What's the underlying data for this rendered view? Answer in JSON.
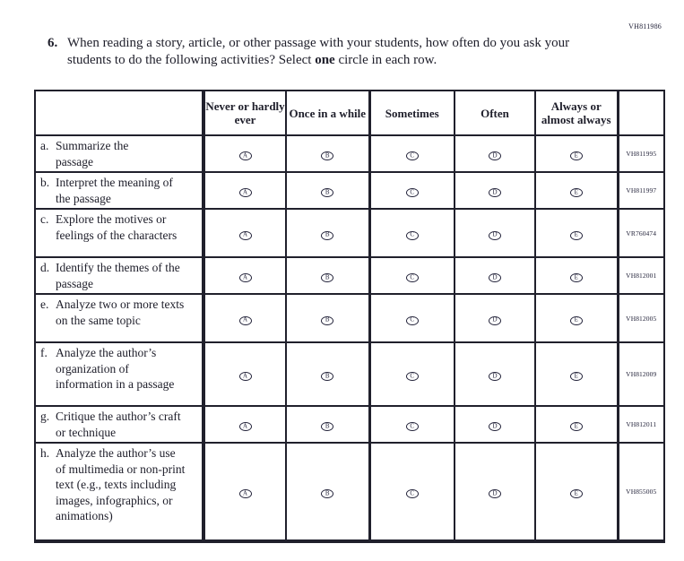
{
  "page": {
    "corner_id": "VH811986"
  },
  "question": {
    "number": "6.",
    "text_1": "When reading a story, article, or other passage with your students, how often do you ask your students to do the following activities? Select ",
    "bold_word": "one",
    "text_2": " circle in each row."
  },
  "table": {
    "columns": [
      "Never or hardly ever",
      "Once in a while",
      "Sometimes",
      "Often",
      "Always or almost always"
    ],
    "options": [
      "A",
      "B",
      "C",
      "D",
      "E"
    ],
    "rows": [
      {
        "letter": "a.",
        "label": "Summarize the passage",
        "id": "VH811995"
      },
      {
        "letter": "b.",
        "label": "Interpret the meaning of the passage",
        "id": "VH811997"
      },
      {
        "letter": "c.",
        "label": "Explore the motives or feelings of the characters",
        "id": "VR760474"
      },
      {
        "letter": "d.",
        "label": "Identify the themes of the passage",
        "id": "VH812001"
      },
      {
        "letter": "e.",
        "label": "Analyze two or more texts on the same topic",
        "id": "VH812005"
      },
      {
        "letter": "f.",
        "label": "Analyze the author’s organization of information in a passage",
        "id": "VH812009"
      },
      {
        "letter": "g.",
        "label": "Critique the author’s craft or technique",
        "id": "VH812011"
      },
      {
        "letter": "h.",
        "label": "Analyze the author’s use of multimedia or non-print text (e.g., texts including images, infographics, or animations)",
        "id": "VH855005"
      }
    ]
  },
  "colors": {
    "ink": "#20202c",
    "paper": "#ffffff"
  }
}
